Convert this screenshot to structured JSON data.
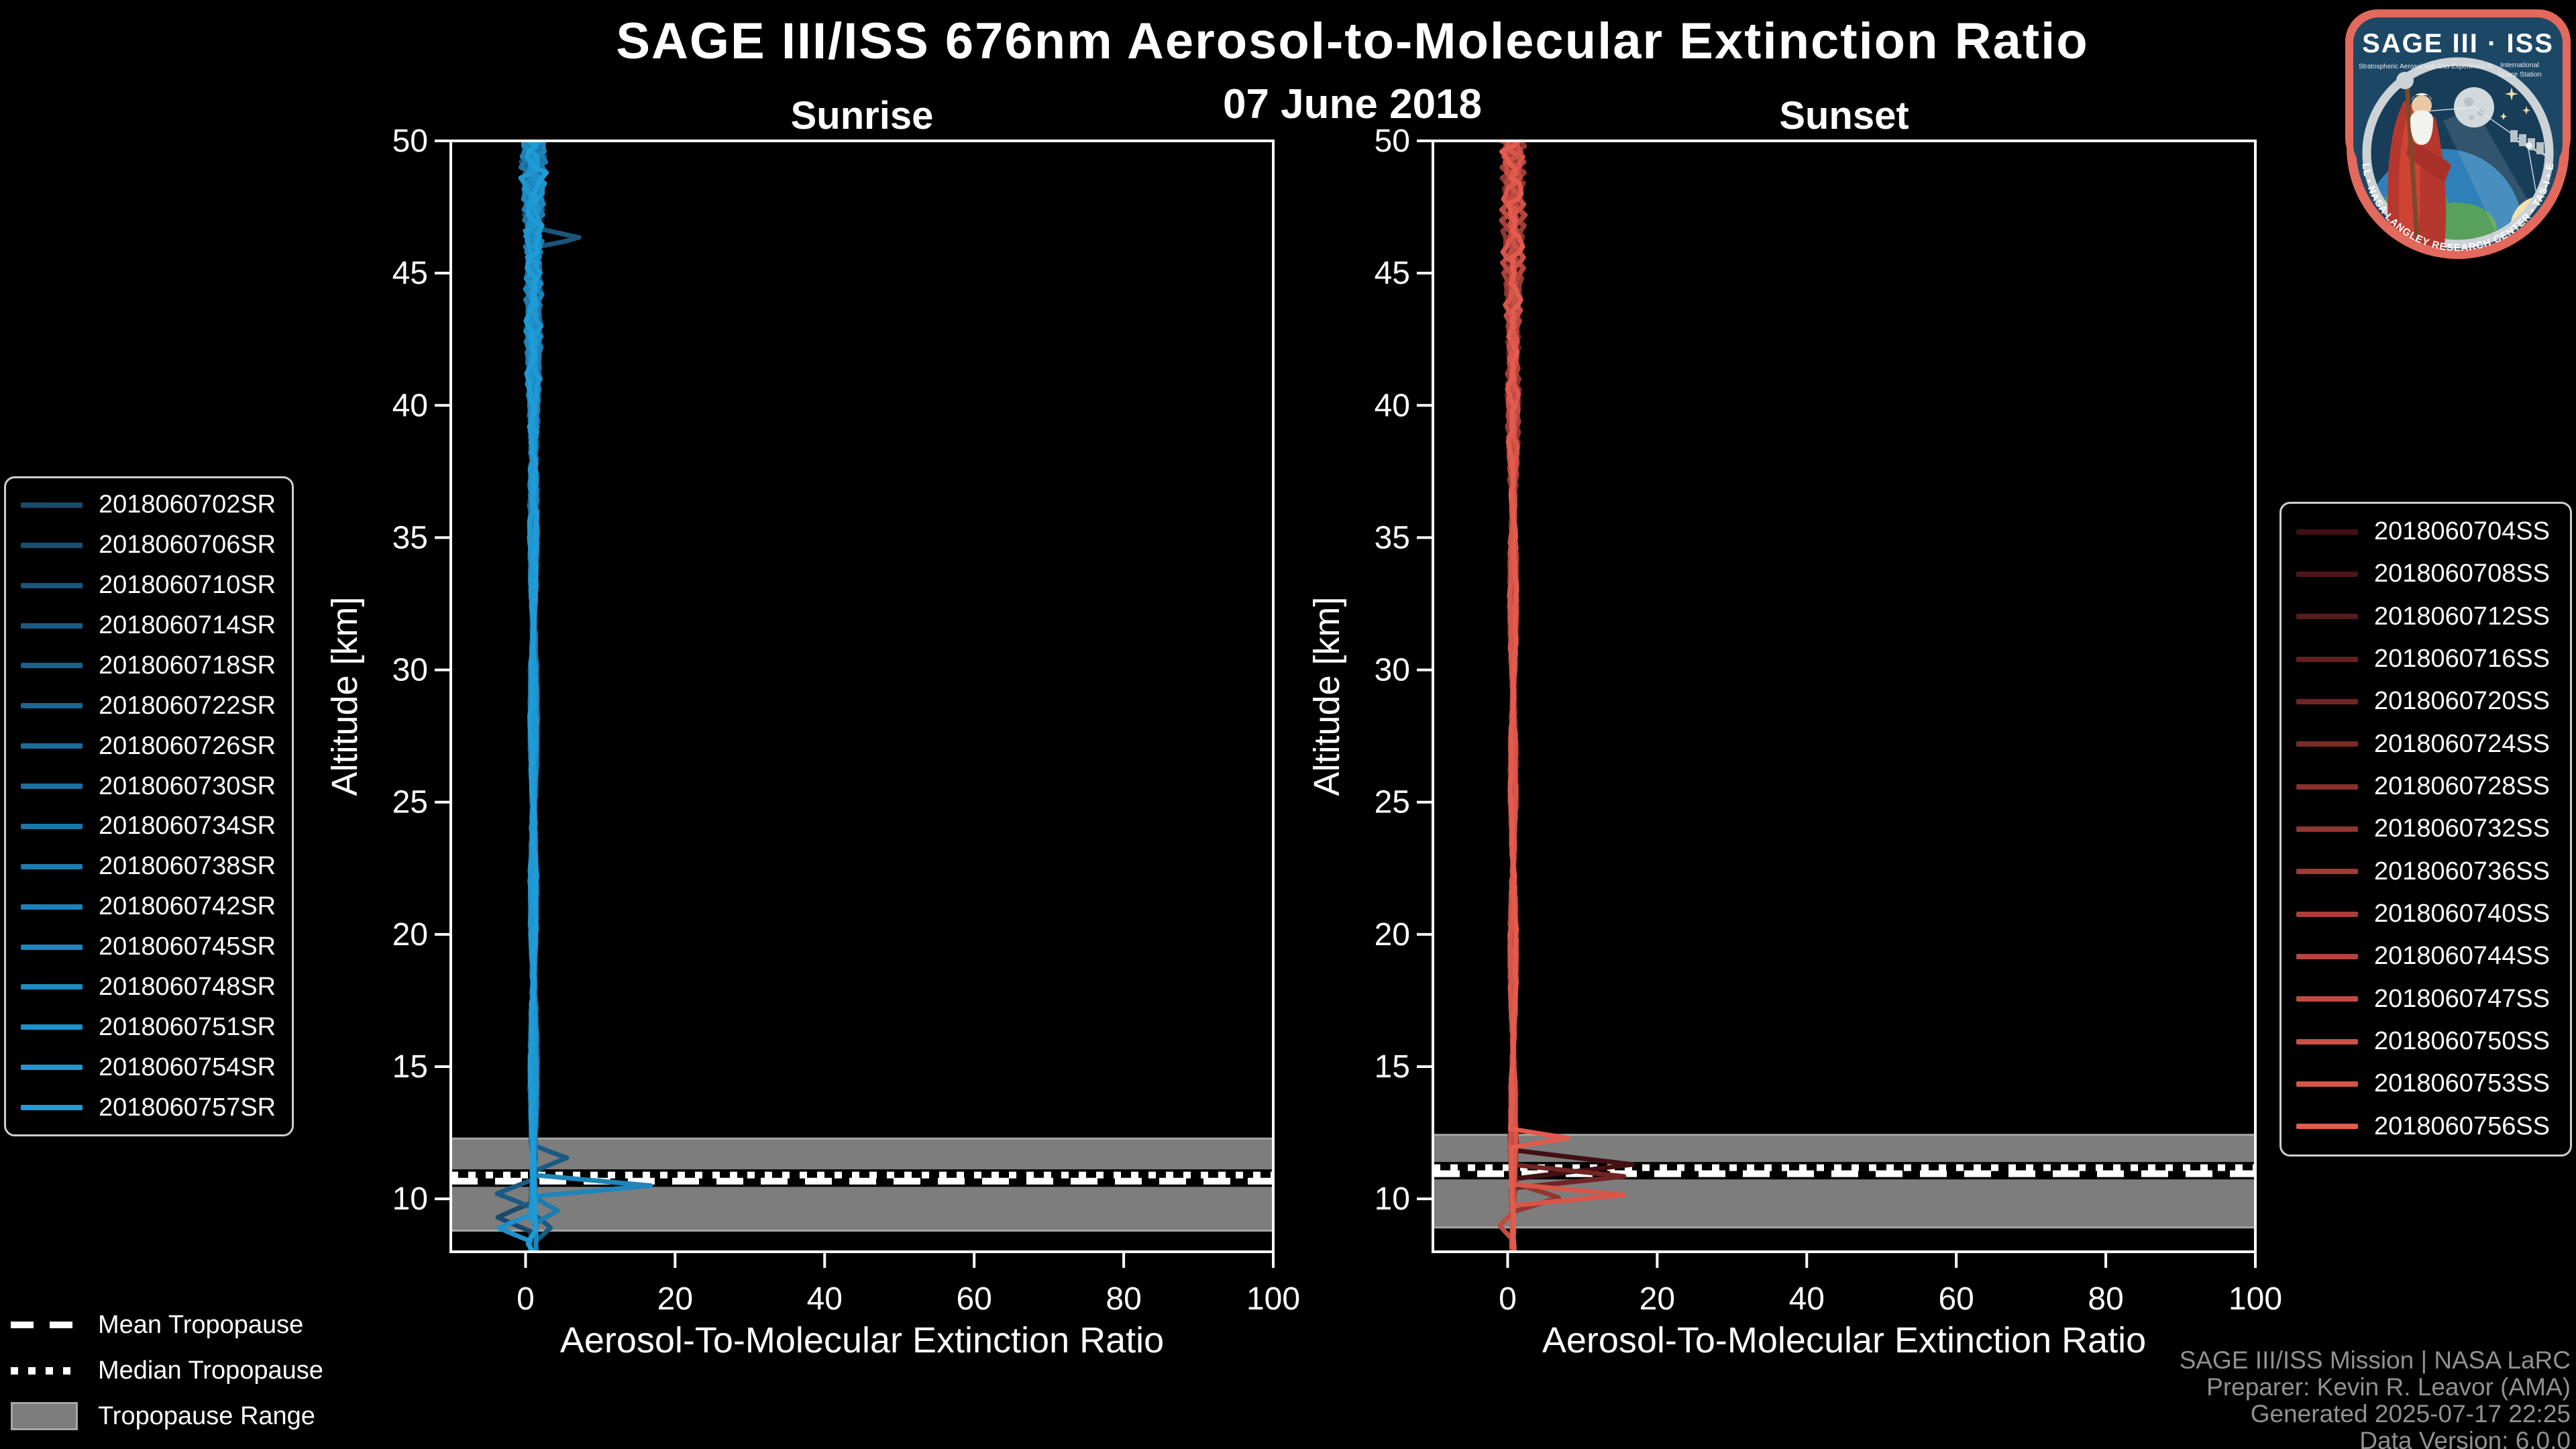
{
  "header": {
    "title": "SAGE III/ISS 676nm Aerosol-to-Molecular Extinction Ratio",
    "date": "07 June 2018"
  },
  "footer": {
    "lines": [
      "SAGE III/ISS Mission | NASA LaRC",
      "Preparer: Kevin R. Leavor (AMA)",
      "Generated 2025-07-17 22:25",
      "Data Version: 6.0.0"
    ]
  },
  "logo": {
    "name": "SAGE III · ISS",
    "subtitle_left": "Stratospheric Aerosol and Gas Experiment III",
    "subtitle_right_1": "International",
    "subtitle_right_2": "Space Station",
    "ring_text": "BALL  •  NASA LANGLEY RESEARCH CENTER  •  TAS-I  •  ESA"
  },
  "tropopause_legend": [
    {
      "label": "Mean Tropopause",
      "style": "dashed"
    },
    {
      "label": "Median Tropopause",
      "style": "dotted"
    },
    {
      "label": "Tropopause Range",
      "style": "band"
    }
  ],
  "colors": {
    "background": "#000000",
    "axis": "#ffffff",
    "tropopause_band": "#7d7d7d",
    "tropopause_band_edge": "#a6a6a6",
    "attribution_text": "#919191"
  },
  "chart_data": [
    {
      "type": "line",
      "title": "Sunrise",
      "xlabel": "Aerosol-To-Molecular Extinction Ratio",
      "ylabel": "Altitude [km]",
      "xlim": [
        -10,
        100
      ],
      "ylim": [
        8,
        50
      ],
      "xticks": [
        0,
        20,
        40,
        60,
        80,
        100
      ],
      "yticks": [
        10,
        15,
        20,
        25,
        30,
        35,
        40,
        45,
        50
      ],
      "grid": false,
      "legend_position": "left-outside",
      "seed": 0.7,
      "noise_profile": [
        [
          8,
          0.15
        ],
        [
          33,
          0.2
        ],
        [
          38,
          0.45
        ],
        [
          43,
          0.9
        ],
        [
          46,
          1.3
        ],
        [
          50,
          1.9
        ]
      ],
      "tropopause": {
        "range": [
          8.8,
          12.28
        ],
        "mean": 10.67,
        "median": 10.9
      },
      "series": [
        {
          "name": "2018060702SR",
          "color": "#1a4a6d",
          "base": 1.0,
          "bottom_alt": 8.0,
          "features": [
            {
              "alt": 9.3,
              "value": -4.5,
              "width": 0.55
            }
          ]
        },
        {
          "name": "2018060706SR",
          "color": "#1a4f74",
          "base": 1.1,
          "bottom_alt": 10.4,
          "features": []
        },
        {
          "name": "2018060710SR",
          "color": "#1b557b",
          "base": 1.2,
          "bottom_alt": 9.6,
          "features": [
            {
              "alt": 46.35,
              "value": 5.0,
              "width": 0.4
            }
          ]
        },
        {
          "name": "2018060714SR",
          "color": "#1b5a82",
          "base": 1.0,
          "bottom_alt": 8.0,
          "features": [
            {
              "alt": 11.55,
              "value": 4.6,
              "width": 0.5
            },
            {
              "alt": 10.2,
              "value": -5.0,
              "width": 0.55
            },
            {
              "alt": 8.9,
              "value": 2.0,
              "width": 0.5
            }
          ]
        },
        {
          "name": "2018060718SR",
          "color": "#1b608a",
          "base": 1.15,
          "bottom_alt": 11.2,
          "features": []
        },
        {
          "name": "2018060722SR",
          "color": "#1c6591",
          "base": 0.95,
          "bottom_alt": 10.0,
          "features": []
        },
        {
          "name": "2018060726SR",
          "color": "#1c6b98",
          "base": 1.2,
          "bottom_alt": 12.6,
          "features": []
        },
        {
          "name": "2018060730SR",
          "color": "#1c709f",
          "base": 1.05,
          "bottom_alt": 9.4,
          "features": []
        },
        {
          "name": "2018060734SR",
          "color": "#1d76a6",
          "base": 1.1,
          "bottom_alt": 10.8,
          "features": []
        },
        {
          "name": "2018060738SR",
          "color": "#1d7bad",
          "base": 1.0,
          "bottom_alt": 9.0,
          "features": [
            {
              "alt": 9.55,
              "value": 3.0,
              "width": 0.5
            }
          ]
        },
        {
          "name": "2018060742SR",
          "color": "#1d81b4",
          "base": 1.15,
          "bottom_alt": 11.6,
          "features": []
        },
        {
          "name": "2018060745SR",
          "color": "#1e86bb",
          "base": 1.05,
          "bottom_alt": 8.0,
          "features": [
            {
              "alt": 10.5,
              "value": 15.5,
              "width": 0.4
            }
          ]
        },
        {
          "name": "2018060748SR",
          "color": "#1e8cc3",
          "base": 1.0,
          "bottom_alt": 9.8,
          "features": []
        },
        {
          "name": "2018060751SR",
          "color": "#1e91ca",
          "base": 1.1,
          "bottom_alt": 8.4,
          "features": [
            {
              "alt": 8.9,
              "value": -5.0,
              "width": 0.6
            }
          ]
        },
        {
          "name": "2018060754SR",
          "color": "#1f97d1",
          "base": 1.0,
          "bottom_alt": 9.2,
          "features": []
        },
        {
          "name": "2018060757SR",
          "color": "#1f9cd8",
          "base": 1.0,
          "bottom_alt": 8.0,
          "features": [
            {
              "alt": 8.3,
              "value": -0.9,
              "width": 0.5
            }
          ]
        }
      ]
    },
    {
      "type": "line",
      "title": "Sunset",
      "xlabel": "Aerosol-To-Molecular Extinction Ratio",
      "ylabel": "Altitude [km]",
      "xlim": [
        -10,
        100
      ],
      "ylim": [
        8,
        50
      ],
      "xticks": [
        0,
        20,
        40,
        60,
        80,
        100
      ],
      "yticks": [
        10,
        15,
        20,
        25,
        30,
        35,
        40,
        45,
        50
      ],
      "grid": false,
      "legend_position": "right-outside",
      "seed": 3.9,
      "noise_profile": [
        [
          8,
          0.12
        ],
        [
          33,
          0.18
        ],
        [
          38,
          0.4
        ],
        [
          43,
          0.85
        ],
        [
          46,
          1.2
        ],
        [
          50,
          1.8
        ]
      ],
      "tropopause": {
        "range": [
          8.92,
          12.42
        ],
        "mean": 10.95,
        "median": 11.18
      },
      "series": [
        {
          "name": "2018060704SS",
          "color": "#421014",
          "base": 0.8,
          "bottom_alt": 8.6,
          "features": [
            {
              "alt": 11.3,
              "value": 16.2,
              "width": 0.55
            }
          ]
        },
        {
          "name": "2018060708SS",
          "color": "#4d1518",
          "base": 0.7,
          "bottom_alt": 10.6,
          "features": []
        },
        {
          "name": "2018060712SS",
          "color": "#591b1c",
          "base": 0.75,
          "bottom_alt": 9.4,
          "features": []
        },
        {
          "name": "2018060716SS",
          "color": "#642020",
          "base": 0.8,
          "bottom_alt": 11.4,
          "features": []
        },
        {
          "name": "2018060720SS",
          "color": "#702524",
          "base": 0.7,
          "bottom_alt": 9.0,
          "features": [
            {
              "alt": 10.85,
              "value": 15.0,
              "width": 0.45
            }
          ]
        },
        {
          "name": "2018060724SS",
          "color": "#7b2b28",
          "base": 0.75,
          "bottom_alt": 10.2,
          "features": []
        },
        {
          "name": "2018060728SS",
          "color": "#87302c",
          "base": 0.8,
          "bottom_alt": 12.4,
          "features": []
        },
        {
          "name": "2018060732SS",
          "color": "#923631",
          "base": 0.7,
          "bottom_alt": 8.3,
          "features": [
            {
              "alt": 10.05,
              "value": 6.0,
              "width": 0.55
            }
          ]
        },
        {
          "name": "2018060736SS",
          "color": "#9d3b35",
          "base": 0.75,
          "bottom_alt": 9.8,
          "features": []
        },
        {
          "name": "2018060740SS",
          "color": "#a94039",
          "base": 0.7,
          "bottom_alt": 10.9,
          "features": []
        },
        {
          "name": "2018060744SS",
          "color": "#b4463d",
          "base": 0.8,
          "bottom_alt": 9.6,
          "features": []
        },
        {
          "name": "2018060747SS",
          "color": "#c04b41",
          "base": 0.7,
          "bottom_alt": 8.0,
          "features": [
            {
              "alt": 9.0,
              "value": -1.8,
              "width": 0.5
            }
          ]
        },
        {
          "name": "2018060750SS",
          "color": "#cb5045",
          "base": 0.75,
          "bottom_alt": 9.2,
          "features": []
        },
        {
          "name": "2018060753SS",
          "color": "#d75649",
          "base": 0.7,
          "bottom_alt": 8.2,
          "features": [
            {
              "alt": 10.15,
              "value": 14.6,
              "width": 0.4
            }
          ]
        },
        {
          "name": "2018060756SS",
          "color": "#e25b4d",
          "base": 0.75,
          "bottom_alt": 8.0,
          "features": [
            {
              "alt": 12.3,
              "value": 7.6,
              "width": 0.35
            }
          ]
        }
      ]
    }
  ]
}
